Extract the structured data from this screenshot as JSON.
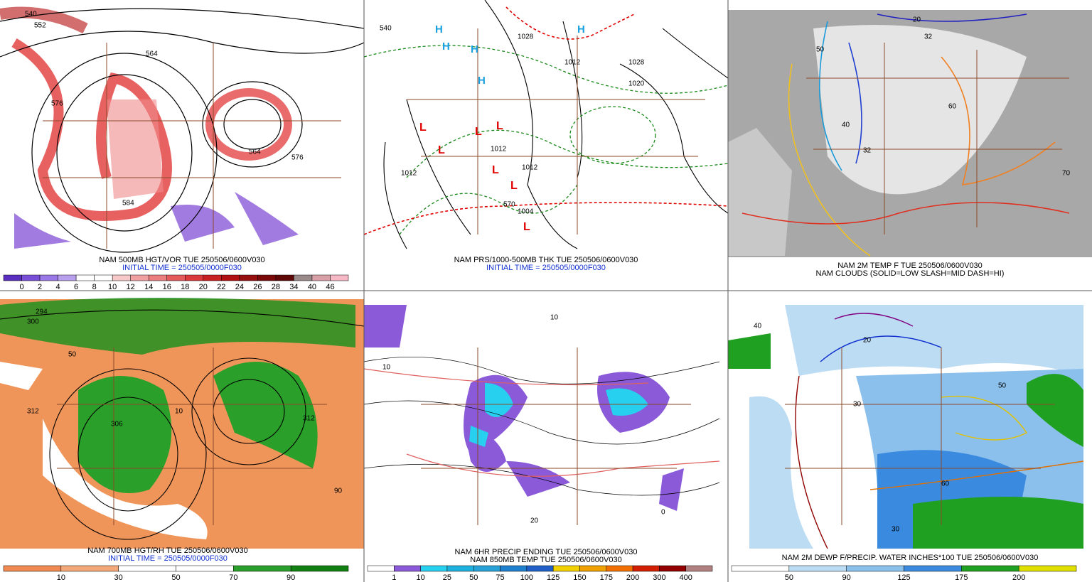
{
  "panels": [
    {
      "caption": [
        "NAM 500MB HGT/VOR TUE 250506/0600V030",
        "INITIAL TIME = 250505/0000F030"
      ],
      "map_labels": [
        "552",
        "564",
        "576",
        "564",
        "576",
        "584",
        "540"
      ],
      "colorbar": {
        "labels": [
          "0",
          "2",
          "4",
          "6",
          "8",
          "10",
          "12",
          "14",
          "16",
          "18",
          "20",
          "22",
          "24",
          "26",
          "28",
          "34",
          "40",
          "46"
        ],
        "colors": [
          "#5a2fc0",
          "#7a4fd8",
          "#9a78e6",
          "#b9a0ef",
          "#ffffff",
          "#ffffff",
          "#f6c8c8",
          "#f0a0a0",
          "#ea7d7d",
          "#e45a5a",
          "#dc3a3a",
          "#c82020",
          "#b01010",
          "#961010",
          "#7a0a0a",
          "#5e0808",
          "#9a8a8a",
          "#d9a0a8",
          "#f6b8c4"
        ]
      }
    },
    {
      "caption": [
        "NAM PRS/1000-500MB THK TUE 250506/0600V030",
        "INITIAL TIME = 250505/0000F030"
      ],
      "map_labels": [
        "1012",
        "1012",
        "1012",
        "1004",
        "1028",
        "1028",
        "1012",
        "1020",
        "540",
        "570",
        "H",
        "H",
        "H",
        "H",
        "H",
        "L",
        "L",
        "L",
        "L",
        "L",
        "L",
        "L"
      ]
    },
    {
      "caption": [
        "NAM 2M TEMP F TUE 250506/0600V030",
        "NAM CLOUDS (SOLID=LOW SLASH=MID DASH=HI)"
      ],
      "map_labels": [
        "32",
        "40",
        "50",
        "60",
        "70",
        "20",
        "32"
      ]
    },
    {
      "caption": [
        "NAM 700MB HGT/RH TUE 250506/0600V030",
        "INITIAL TIME = 250505/0000F030"
      ],
      "map_labels": [
        "294",
        "300",
        "312",
        "306",
        "312",
        "10",
        "50",
        "90"
      ],
      "colorbar": {
        "labels": [
          "10",
          "30",
          "50",
          "70",
          "90"
        ],
        "colors": [
          "#f08a50",
          "#f4a878",
          "#ffffff",
          "#ffffff",
          "#2aa02a",
          "#108010"
        ]
      }
    },
    {
      "caption": [
        "NAM 6HR PRECIP ENDING TUE 250506/0600V030",
        "NAM 850MB TEMP TUE 250506/0600V030"
      ],
      "map_labels": [
        "10",
        "20",
        "10",
        "0"
      ],
      "colorbar": {
        "labels": [
          "1",
          "10",
          "25",
          "50",
          "75",
          "100",
          "125",
          "150",
          "175",
          "200",
          "300",
          "400"
        ],
        "colors": [
          "#ffffff",
          "#8a5ad8",
          "#28d0f0",
          "#20b0e0",
          "#28a0d8",
          "#2080d0",
          "#2060c8",
          "#f0d000",
          "#f0a000",
          "#f07000",
          "#d02000",
          "#900000",
          "#b08080"
        ]
      }
    },
    {
      "caption": [
        "NAM 2M DEWP F/PRECIP. WATER INCHES*100 TUE 250506/0600V030"
      ],
      "map_labels": [
        "40",
        "30",
        "50",
        "20",
        "60",
        "30"
      ],
      "colorbar": {
        "labels": [
          "50",
          "90",
          "125",
          "175",
          "200"
        ],
        "colors": [
          "#ffffff",
          "#bcdcf4",
          "#8cc0ec",
          "#3a8ae0",
          "#20a020",
          "#e0e000"
        ]
      }
    }
  ]
}
